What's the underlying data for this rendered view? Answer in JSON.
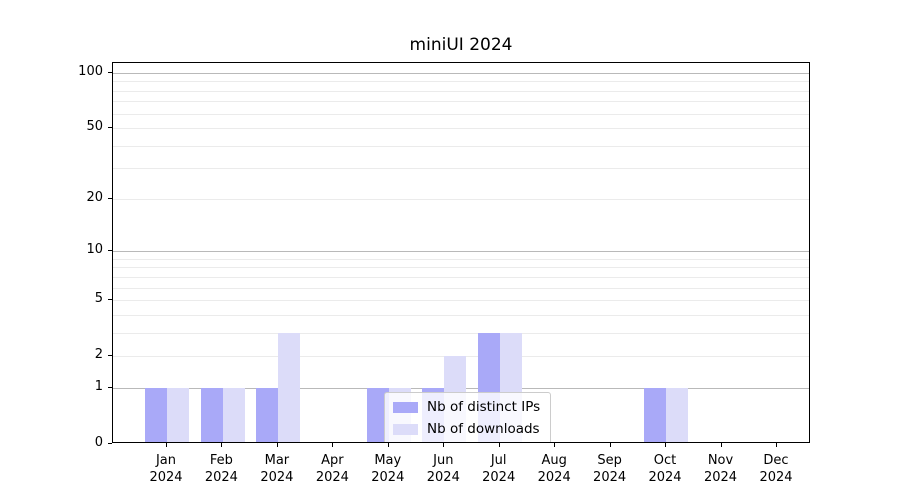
{
  "figure": {
    "title": "miniUI 2024"
  },
  "chart_data": {
    "type": "bar",
    "title": "miniUI 2024",
    "categories": [
      "Jan",
      "Feb",
      "Mar",
      "Apr",
      "May",
      "Jun",
      "Jul",
      "Aug",
      "Sep",
      "Oct",
      "Nov",
      "Dec"
    ],
    "category_year": "2024",
    "series": [
      {
        "name": "Nb of distinct IPs",
        "color": "#a9a9f8",
        "values": [
          1,
          1,
          1,
          0,
          1,
          1,
          3,
          0,
          0,
          1,
          0,
          0
        ]
      },
      {
        "name": "Nb of downloads",
        "color": "#dcdcf9",
        "values": [
          1,
          1,
          3,
          0,
          1,
          2,
          3,
          0,
          0,
          1,
          0,
          0
        ]
      }
    ],
    "xlabel": "",
    "ylabel": "",
    "yscale": "log1p",
    "ylim": [
      0,
      113.4
    ],
    "yticks": [
      0,
      1,
      2,
      5,
      10,
      20,
      50,
      100
    ],
    "major_gridlines": [
      1,
      10,
      100
    ],
    "minor_gridlines": [
      2,
      3,
      4,
      5,
      6,
      7,
      8,
      9,
      20,
      30,
      40,
      50,
      60,
      70,
      80,
      90
    ],
    "grid": true,
    "legend_position": "lower center"
  },
  "colors": {
    "axis": "#000000",
    "major_grid": "#b9b9b9",
    "minor_grid": "#ebebeb",
    "legend_border": "#cccccc",
    "background": "#ffffff"
  }
}
